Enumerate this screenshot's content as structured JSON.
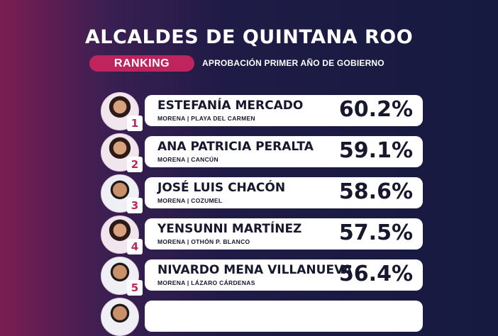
{
  "header": {
    "title": "ALCALDES DE QUINTANA ROO",
    "ranking_label": "RANKING",
    "subtitle": "APROBACIÓN PRIMER AÑO DE GOBIERNO"
  },
  "colors": {
    "accent": "#c0245d",
    "card": "#ffffff",
    "text_dark": "#17172e"
  },
  "ranking": [
    {
      "rank": "1",
      "name": "ESTEFANÍA MERCADO",
      "meta": "MORENA | PLAYA DEL CARMEN",
      "approval": "60.2%"
    },
    {
      "rank": "2",
      "name": "ANA PATRICIA PERALTA",
      "meta": "MORENA | CANCÚN",
      "approval": "59.1%"
    },
    {
      "rank": "3",
      "name": "JOSÉ LUIS CHACÓN",
      "meta": "MORENA | COZUMEL",
      "approval": "58.6%"
    },
    {
      "rank": "4",
      "name": "YENSUNNI MARTÍNEZ",
      "meta": "MORENA | OTHÓN P. BLANCO",
      "approval": "57.5%"
    },
    {
      "rank": "5",
      "name": "NIVARDO MENA VILLANUEVA",
      "meta": "MORENA | LÁZARO CÁRDENAS",
      "approval": "56.4%"
    }
  ]
}
